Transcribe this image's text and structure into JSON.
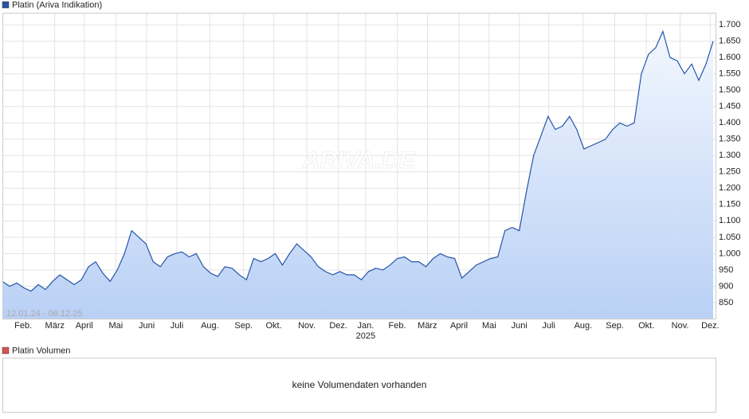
{
  "chart_data": {
    "type": "line",
    "title": "Platin (Ariva Indikation)",
    "date_range": "12.01.24 - 06.12.25",
    "watermark": "ARIVA.DE",
    "year_label": "2025",
    "series": [
      {
        "name": "Platin (Ariva Indikation)",
        "color": "#2456a8",
        "values": [
          915,
          900,
          910,
          895,
          885,
          905,
          890,
          915,
          935,
          920,
          905,
          920,
          960,
          975,
          940,
          915,
          950,
          1000,
          1070,
          1050,
          1030,
          975,
          960,
          990,
          1000,
          1005,
          990,
          1000,
          960,
          940,
          930,
          960,
          955,
          935,
          920,
          985,
          975,
          985,
          1000,
          965,
          1000,
          1030,
          1010,
          990,
          960,
          945,
          935,
          945,
          935,
          935,
          920,
          945,
          955,
          950,
          965,
          985,
          990,
          975,
          975,
          960,
          985,
          1000,
          990,
          985,
          925,
          945,
          965,
          975,
          985,
          990,
          1070,
          1080,
          1070,
          1190,
          1300,
          1360,
          1420,
          1380,
          1390,
          1420,
          1380,
          1320,
          1330,
          1340,
          1350,
          1380,
          1400,
          1390,
          1400,
          1550,
          1610,
          1630,
          1680,
          1600,
          1590,
          1550,
          1580,
          1530,
          1580,
          1650
        ]
      }
    ],
    "xlim": [
      0,
      99
    ],
    "xticks": [
      {
        "value": 2.9,
        "label": "Feb."
      },
      {
        "value": 7.3,
        "label": "März"
      },
      {
        "value": 11.4,
        "label": "April"
      },
      {
        "value": 15.8,
        "label": "Mai"
      },
      {
        "value": 20.1,
        "label": "Juni"
      },
      {
        "value": 24.3,
        "label": "Juli"
      },
      {
        "value": 28.9,
        "label": "Aug."
      },
      {
        "value": 33.6,
        "label": "Sep."
      },
      {
        "value": 37.8,
        "label": "Okt."
      },
      {
        "value": 42.4,
        "label": "Nov."
      },
      {
        "value": 46.8,
        "label": "Dez."
      },
      {
        "value": 50.6,
        "label": "Jan."
      },
      {
        "value": 55,
        "label": "Feb."
      },
      {
        "value": 59.2,
        "label": "März"
      },
      {
        "value": 63.6,
        "label": "April"
      },
      {
        "value": 67.8,
        "label": "Mai"
      },
      {
        "value": 72,
        "label": "Juni"
      },
      {
        "value": 76.1,
        "label": "Juli"
      },
      {
        "value": 80.9,
        "label": "Aug."
      },
      {
        "value": 85.3,
        "label": "Sep."
      },
      {
        "value": 89.7,
        "label": "Okt."
      },
      {
        "value": 94.4,
        "label": "Nov."
      },
      {
        "value": 98.6,
        "label": "Dez."
      }
    ],
    "ylim": [
      801,
      1737
    ],
    "yticks": [
      850,
      900,
      950,
      {
        "value": 1000,
        "label": "1.000"
      },
      {
        "value": 1050,
        "label": "1.050"
      },
      {
        "value": 1100,
        "label": "1.100"
      },
      {
        "value": 1150,
        "label": "1.150"
      },
      {
        "value": 1200,
        "label": "1.200"
      },
      {
        "value": 1250,
        "label": "1.250"
      },
      {
        "value": 1300,
        "label": "1.300"
      },
      {
        "value": 1350,
        "label": "1.350"
      },
      {
        "value": 1400,
        "label": "1.400"
      },
      {
        "value": 1450,
        "label": "1.450"
      },
      {
        "value": 1500,
        "label": "1.500"
      },
      {
        "value": 1550,
        "label": "1.550"
      },
      {
        "value": 1600,
        "label": "1.600"
      },
      {
        "value": 1650,
        "label": "1.650"
      },
      {
        "value": 1700,
        "label": "1.700"
      }
    ],
    "grid": true
  },
  "volume_panel": {
    "title": "Platin Volumen",
    "message": "keine Volumendaten vorhanden"
  }
}
